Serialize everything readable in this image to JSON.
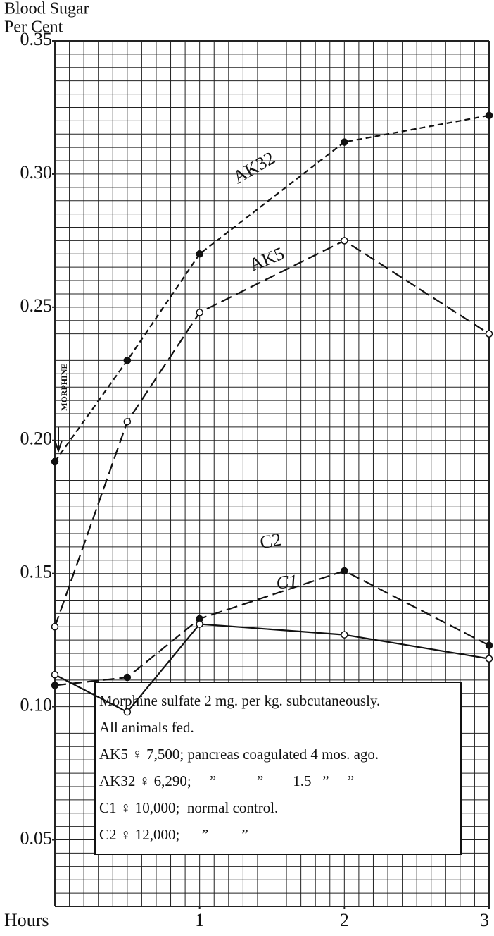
{
  "chart_data": {
    "type": "line",
    "y_label": [
      "Blood Sugar",
      "Per Cent"
    ],
    "x_label": "Hours",
    "xlim": [
      0,
      3
    ],
    "ylim": [
      0.025,
      0.35
    ],
    "xticks": [
      1,
      2,
      3
    ],
    "yticks": [
      0.05,
      {
        "value": 0.1,
        "label": "0.10"
      },
      0.15,
      {
        "value": 0.2,
        "label": "0.20"
      },
      0.25,
      {
        "value": 0.3,
        "label": "0.30"
      },
      0.35
    ],
    "grid": true,
    "grid_step_x": 0.1,
    "grid_step_y": 0.005,
    "annotation": "MORPHINE",
    "series": [
      {
        "name": "AK32",
        "color": "#111111",
        "dash": "short",
        "marker": "filled",
        "x": [
          0,
          0.5,
          1,
          2,
          3
        ],
        "values": [
          0.192,
          0.23,
          0.27,
          0.312,
          0.322
        ]
      },
      {
        "name": "AK5",
        "color": "#111111",
        "dash": "long",
        "marker": "open",
        "x": [
          0,
          0.5,
          1,
          2,
          3
        ],
        "values": [
          0.13,
          0.207,
          0.248,
          0.275,
          0.24
        ]
      },
      {
        "name": "C2",
        "color": "#111111",
        "dash": "long",
        "marker": "filled",
        "x": [
          0,
          0.5,
          1,
          2,
          3
        ],
        "values": [
          0.108,
          0.111,
          0.133,
          0.151,
          0.123
        ]
      },
      {
        "name": "C1",
        "color": "#111111",
        "dash": "solid",
        "marker": "open",
        "x": [
          0,
          0.5,
          1,
          2,
          3
        ],
        "values": [
          0.112,
          0.098,
          0.131,
          0.127,
          0.118
        ]
      }
    ],
    "notes": [
      "Morphine sulfate 2 mg. per kg. subcutaneously.",
      "All animals fed.",
      "AK5 ♀ 7,500; pancreas coagulated 4 mos. ago.",
      "AK32 ♀ 6,290;     ”           ”        1.5   ”     ”",
      "C1 ♀ 10,000;  normal control.",
      "C2 ♀ 12,000;      ”         ”"
    ]
  }
}
